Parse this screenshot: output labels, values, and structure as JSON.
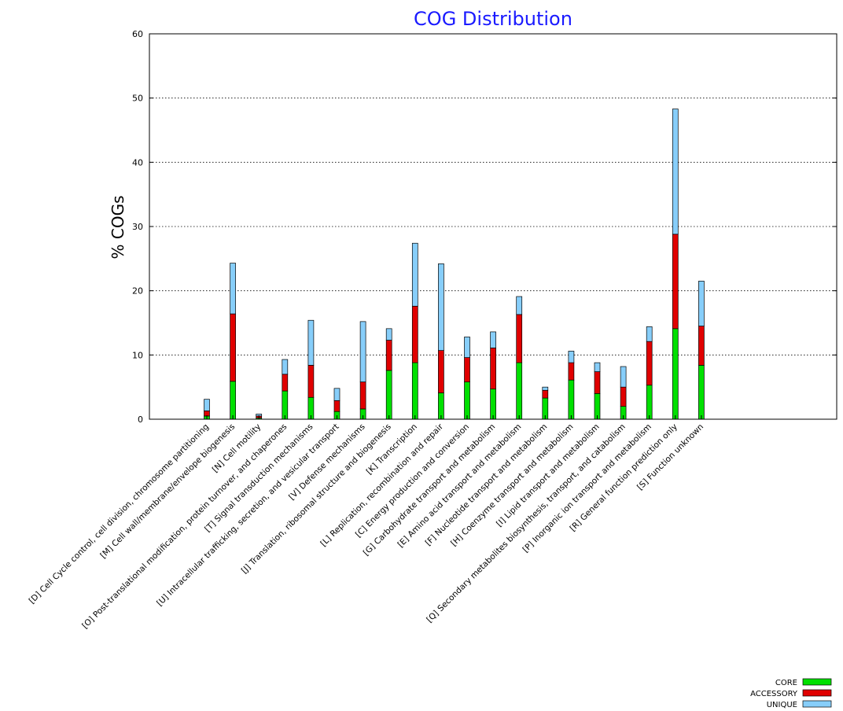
{
  "chart_data": {
    "type": "bar",
    "stacked": true,
    "title": "COG Distribution",
    "ylabel": "% COGs",
    "xlabel": "",
    "ylim": [
      0,
      60
    ],
    "yticks": [
      0,
      10,
      20,
      30,
      40,
      50,
      60
    ],
    "grid": "horizontal dotted",
    "legend_position": "bottom-right",
    "categories": [
      "[D] Cell Cycle control, cell division, chromosome partitioning",
      "[M] Cell wall/membrane/envelope biogenesis",
      "[N] Cell motility",
      "[O] Post-translational modification, protein turnover, and chaperones",
      "[T] Signal transduction mechanisms",
      "[U] Intracellular trafficking, secretion, and vesicular transport",
      "[V] Defense mechanisms",
      "[J] Translation, ribosomal structure and biogenesis",
      "[K] Transcription",
      "[L] Replication, recombination and repair",
      "[C] Energy production and conversion",
      "[G] Carbohydrate transport and metabolism",
      "[E] Amino acid transport and metabolism",
      "[F] Nucleotide transport and metabolism",
      "[H] Coenzyme transport and metabolism",
      "[I] Lipid transport and metabolism",
      "[Q] Secondary metabolites biosynthesis, transport, and catabolism",
      "[P] Inorganic ion transport and metabolism",
      "[R] General function prediction only",
      "[S] Function unknown"
    ],
    "series": [
      {
        "name": "CORE",
        "color": "#00e000",
        "values": [
          0.5,
          5.9,
          0.2,
          4.4,
          3.4,
          1.2,
          1.6,
          7.6,
          8.8,
          4.1,
          5.8,
          4.7,
          8.8,
          3.3,
          6.1,
          4.0,
          2.0,
          5.3,
          14.1,
          8.4
        ]
      },
      {
        "name": "ACCESSORY",
        "color": "#e00000",
        "values": [
          0.8,
          10.5,
          0.3,
          2.6,
          5.0,
          1.7,
          4.2,
          4.7,
          8.8,
          6.6,
          3.8,
          6.4,
          7.5,
          1.2,
          2.7,
          3.4,
          3.0,
          6.8,
          14.7,
          6.1
        ]
      },
      {
        "name": "UNIQUE",
        "color": "#87cefa",
        "values": [
          1.8,
          7.9,
          0.3,
          2.3,
          7.0,
          1.9,
          9.4,
          1.8,
          9.8,
          13.5,
          3.2,
          2.5,
          2.8,
          0.5,
          1.8,
          1.4,
          3.2,
          2.3,
          19.5,
          7.0
        ]
      }
    ]
  }
}
